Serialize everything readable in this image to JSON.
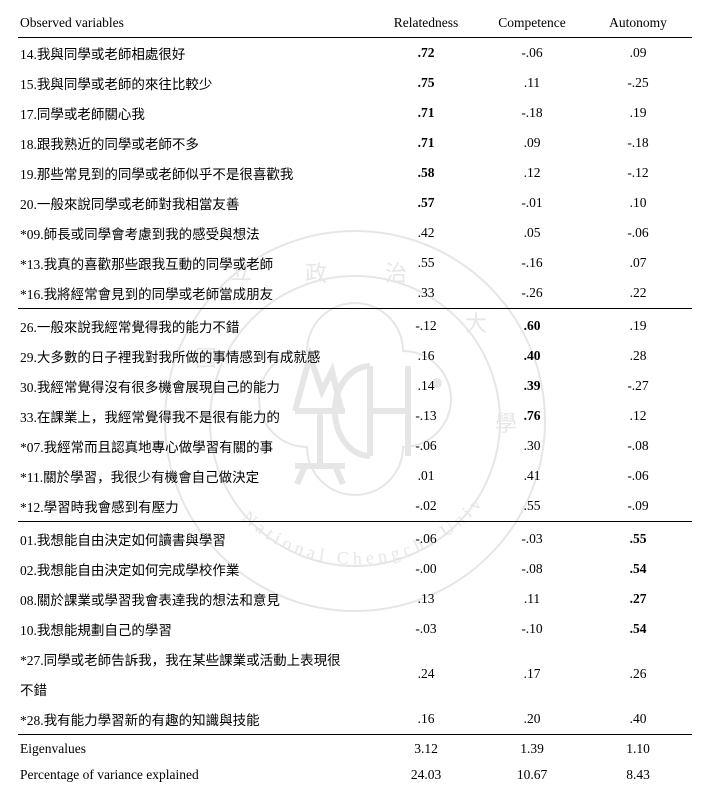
{
  "columns": {
    "c0": "Observed variables",
    "c1": "Relatedness",
    "c2": "Competence",
    "c3": "Autonomy"
  },
  "sections": [
    {
      "rows": [
        {
          "label": "14.我與同學或老師相處很好",
          "r": ".72",
          "rB": true,
          "c": "-.06",
          "a": ".09"
        },
        {
          "label": "15.我與同學或老師的來往比較少",
          "r": ".75",
          "rB": true,
          "c": ".11",
          "a": "-.25"
        },
        {
          "label": "17.同學或老師關心我",
          "r": ".71",
          "rB": true,
          "c": "-.18",
          "a": ".19"
        },
        {
          "label": "18.跟我熟近的同學或老師不多",
          "r": ".71",
          "rB": true,
          "c": ".09",
          "a": "-.18"
        },
        {
          "label": "19.那些常見到的同學或老師似乎不是很喜歡我",
          "r": ".58",
          "rB": true,
          "c": ".12",
          "a": "-.12"
        },
        {
          "label": "20.一般來說同學或老師對我相當友善",
          "r": ".57",
          "rB": true,
          "c": "-.01",
          "a": ".10"
        },
        {
          "label": "*09.師長或同學會考慮到我的感受與想法",
          "r": ".42",
          "c": ".05",
          "a": "-.06"
        },
        {
          "label": "*13.我真的喜歡那些跟我互動的同學或老師",
          "r": ".55",
          "c": "-.16",
          "a": ".07"
        },
        {
          "label": "*16.我將經常會見到的同學或老師當成朋友",
          "r": ".33",
          "c": "-.26",
          "a": ".22"
        }
      ]
    },
    {
      "rows": [
        {
          "label": "26.一般來說我經常覺得我的能力不錯",
          "r": "-.12",
          "c": ".60",
          "cB": true,
          "a": ".19"
        },
        {
          "label": "29.大多數的日子裡我對我所做的事情感到有成就感",
          "r": ".16",
          "c": ".40",
          "cB": true,
          "a": ".28"
        },
        {
          "label": "30.我經常覺得沒有很多機會展現自己的能力",
          "r": ".14",
          "c": ".39",
          "cB": true,
          "a": "-.27"
        },
        {
          "label": "33.在課業上，我經常覺得我不是很有能力的",
          "r": "-.13",
          "c": ".76",
          "cB": true,
          "a": ".12"
        },
        {
          "label": "*07.我經常而且認真地專心做學習有關的事",
          "r": "-.06",
          "c": ".30",
          "a": "-.08"
        },
        {
          "label": "*11.關於學習，我很少有機會自己做決定",
          "r": ".01",
          "c": ".41",
          "a": "-.06"
        },
        {
          "label": "*12.學習時我會感到有壓力",
          "r": "-.02",
          "c": ".55",
          "a": "-.09"
        }
      ]
    },
    {
      "rows": [
        {
          "label": "01.我想能自由決定如何讀書與學習",
          "r": "-.06",
          "c": "-.03",
          "a": ".55",
          "aB": true
        },
        {
          "label": "02.我想能自由決定如何完成學校作業",
          "r": "-.00",
          "c": "-.08",
          "a": ".54",
          "aB": true
        },
        {
          "label": "08.關於課業或學習我會表達我的想法和意見",
          "r": ".13",
          "c": ".11",
          "a": ".27",
          "aB": true
        },
        {
          "label": "10.我想能規劃自己的學習",
          "r": "-.03",
          "c": "-.10",
          "a": ".54",
          "aB": true
        },
        {
          "label": "*27.同學或老師告訴我，我在某些課業或活動上表現很不錯",
          "r": ".24",
          "c": ".17",
          "a": ".26",
          "multi": true
        },
        {
          "label": "*28.我有能力學習新的有趣的知識與技能",
          "r": ".16",
          "c": ".20",
          "a": ".40"
        }
      ]
    }
  ],
  "footer": [
    {
      "label": "Eigenvalues",
      "r": "3.12",
      "c": "1.39",
      "a": "1.10"
    },
    {
      "label": "Percentage of variance explained",
      "r": "24.03",
      "c": "10.67",
      "a": "8.43"
    }
  ]
}
